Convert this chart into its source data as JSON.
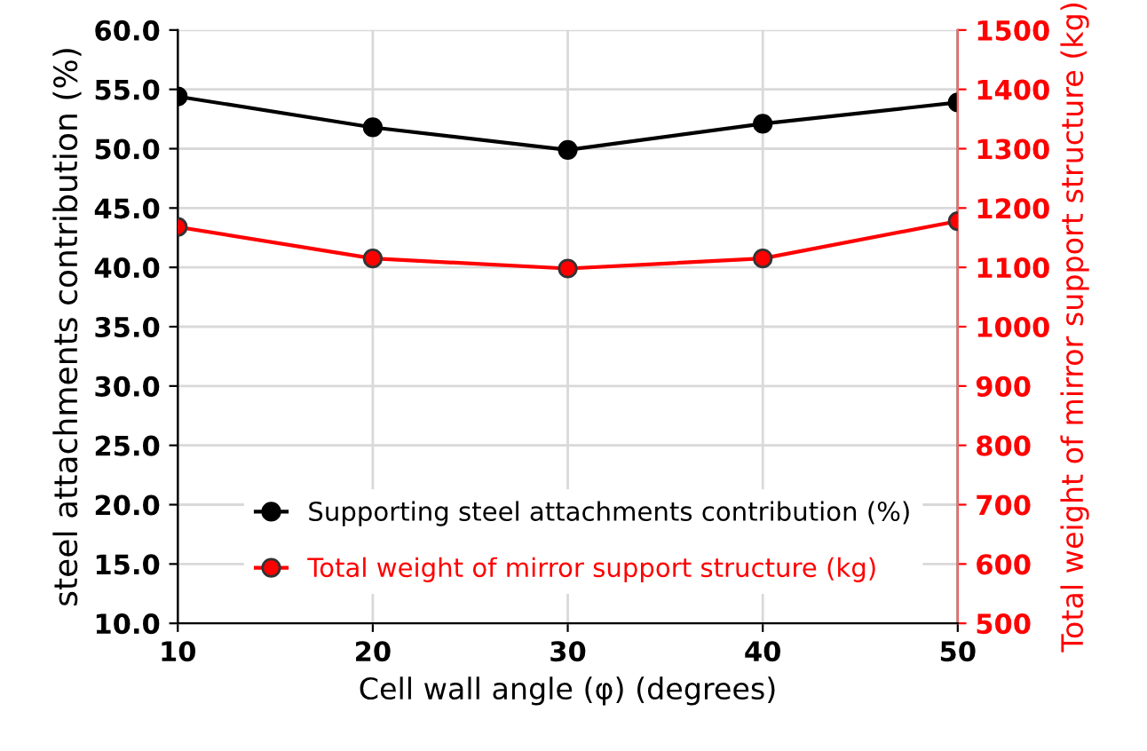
{
  "chart_data": {
    "type": "line",
    "xlabel": "Cell wall angle (φ) (degrees)",
    "ylabel": "steel attachments contribution (%)",
    "y2label": "Total weight of mirror support structure (kg)",
    "x": [
      10,
      20,
      30,
      40,
      50
    ],
    "series": [
      {
        "name": "Supporting steel attachments contribution (%)",
        "color": "#000000",
        "values": [
          54.4,
          51.8,
          49.9,
          52.1,
          53.9
        ]
      },
      {
        "name": "Total weight of mirror support structure (kg)",
        "color": "#ff0000",
        "axis": "y2",
        "values": [
          1168,
          1115,
          1098,
          1115,
          1178
        ]
      }
    ],
    "xlim": [
      10,
      50
    ],
    "xticks": [
      10,
      20,
      30,
      40,
      50
    ],
    "ylim": [
      10,
      60
    ],
    "yticks": [
      {
        "value": 10,
        "label": "10.0"
      },
      {
        "value": 15,
        "label": "15.0"
      },
      {
        "value": 20,
        "label": "20.0"
      },
      {
        "value": 25,
        "label": "25.0"
      },
      {
        "value": 30,
        "label": "30.0"
      },
      {
        "value": 35,
        "label": "35.0"
      },
      {
        "value": 40,
        "label": "40.0"
      },
      {
        "value": 45,
        "label": "45.0"
      },
      {
        "value": 50,
        "label": "50.0"
      },
      {
        "value": 55,
        "label": "55.0"
      },
      {
        "value": 60,
        "label": "60.0"
      }
    ],
    "y2lim": [
      500,
      1500
    ],
    "y2ticks": [
      500,
      600,
      700,
      800,
      900,
      1000,
      1100,
      1200,
      1300,
      1400,
      1500
    ],
    "grid": true,
    "legend": "bottom left",
    "marker": "circle",
    "line_style": "solid"
  }
}
